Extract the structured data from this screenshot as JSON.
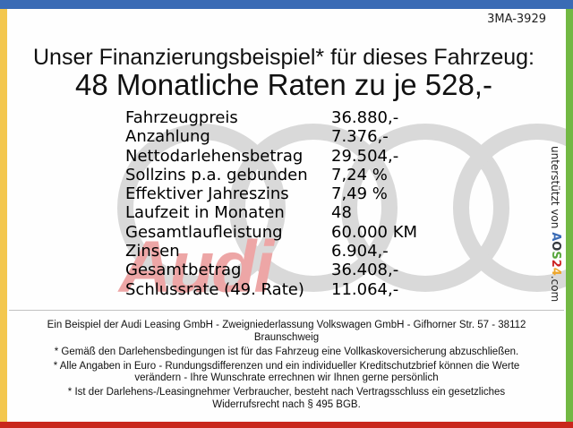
{
  "page": {
    "plate": "3MA-3929",
    "title_line1": "Unser Finanzierungsbeispiel* für dieses Fahrzeug:",
    "title_line2": "48 Monatliche Raten zu je 528,-"
  },
  "finance_table": {
    "rows": [
      {
        "label": "Fahrzeugpreis",
        "value": "36.880,-"
      },
      {
        "label": "Anzahlung",
        "value": "7.376,-"
      },
      {
        "label": "Nettodarlehensbetrag",
        "value": "29.504,-"
      },
      {
        "label": "Sollzins p.a. gebunden",
        "value": "7,24 %"
      },
      {
        "label": "Effektiver Jahreszins",
        "value": "7,49 %"
      },
      {
        "label": "Laufzeit in Monaten",
        "value": "48"
      },
      {
        "label": "Gesamtlaufleistung",
        "value": "60.000 KM"
      },
      {
        "label": "Zinsen",
        "value": "6.904,-"
      },
      {
        "label": "Gesamtbetrag",
        "value": "36.408,-"
      },
      {
        "label": "Schlussrate (49. Rate)",
        "value": "11.064,-"
      }
    ]
  },
  "watermark": {
    "brand_text": "Audi",
    "brand_color": "#edA6a6",
    "rings_color": "#d9d9d9"
  },
  "sidebar": {
    "prefix": "unterstützt von ",
    "brand_letters": [
      {
        "char": "A",
        "color": "#3a6bb5"
      },
      {
        "char": "O",
        "color": "#33383d"
      },
      {
        "char": "S",
        "color": "#56a53a"
      },
      {
        "char": "2",
        "color": "#cc2222"
      },
      {
        "char": "4",
        "color": "#eda52a"
      }
    ],
    "suffix": ".com"
  },
  "footer": {
    "paragraphs": [
      {
        "lines": [
          "Ein Beispiel der Audi Leasing GmbH - Zweigniederlassung Volkswagen GmbH - Gifhorner Str. 57 - 38112",
          "Braunschweig"
        ]
      },
      {
        "lines": [
          "* Gemäß den Darlehensbedingungen ist für das Fahrzeug eine Vollkaskoversicherung abzuschließen."
        ]
      },
      {
        "lines": [
          "* Alle Angaben in Euro - Rundungsdifferenzen und ein individueller Kreditschutzbrief können die Werte",
          "verändern - Ihre Wunschrate errechnen wir Ihnen gerne persönlich"
        ]
      },
      {
        "lines": [
          "* Ist der Darlehens-/Leasingnehmer Verbraucher, besteht nach Vertragsschluss ein gesetzliches",
          "Widerrufsrecht nach § 495 BGB."
        ]
      }
    ]
  },
  "frame_colors": {
    "top": "#3a6bb5",
    "left": "#f3c74e",
    "right": "#72b843",
    "bottom": "#c9271c"
  }
}
